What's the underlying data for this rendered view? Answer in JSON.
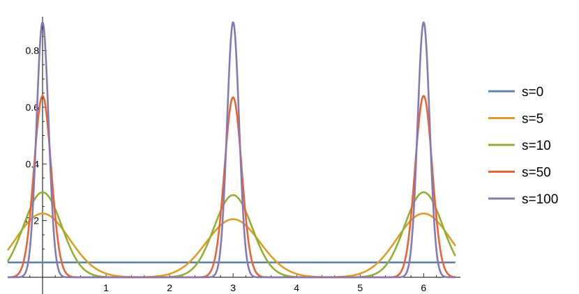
{
  "chart_data": {
    "type": "line",
    "title": "",
    "xlabel": "",
    "ylabel": "",
    "xlim": [
      -0.55,
      6.5
    ],
    "ylim": [
      -0.02,
      0.9
    ],
    "x_ticks": [
      1,
      2,
      3,
      4,
      5,
      6
    ],
    "x_tick_labels": [
      "1",
      "2",
      "3",
      "4",
      "5",
      "6"
    ],
    "y_ticks": [
      0.2,
      0.4,
      0.6,
      0.8
    ],
    "y_tick_labels": [
      "0.2",
      "0.4",
      "0.6",
      "0.8"
    ],
    "grid": false,
    "legend_position": "right",
    "peak_centers": [
      0,
      3,
      6
    ],
    "series": [
      {
        "name": "s=0",
        "color": "#5E81B5",
        "baseline": 0.0524,
        "peaks": [
          0.0,
          0.0,
          0.0
        ],
        "width": 1.0
      },
      {
        "name": "s=5",
        "color": "#E19C24",
        "baseline": 0.0,
        "peaks": [
          0.225,
          0.205,
          0.225
        ],
        "width": 0.42
      },
      {
        "name": "s=10",
        "color": "#8FB032",
        "baseline": 0.0,
        "peaks": [
          0.3,
          0.29,
          0.3
        ],
        "width": 0.3
      },
      {
        "name": "s=50",
        "color": "#EB6235",
        "baseline": 0.0,
        "peaks": [
          0.64,
          0.635,
          0.64
        ],
        "width": 0.135
      },
      {
        "name": "s=100",
        "color": "#8778B3",
        "baseline": 0.0,
        "peaks": [
          0.9,
          0.9,
          0.9
        ],
        "width": 0.095
      }
    ]
  }
}
